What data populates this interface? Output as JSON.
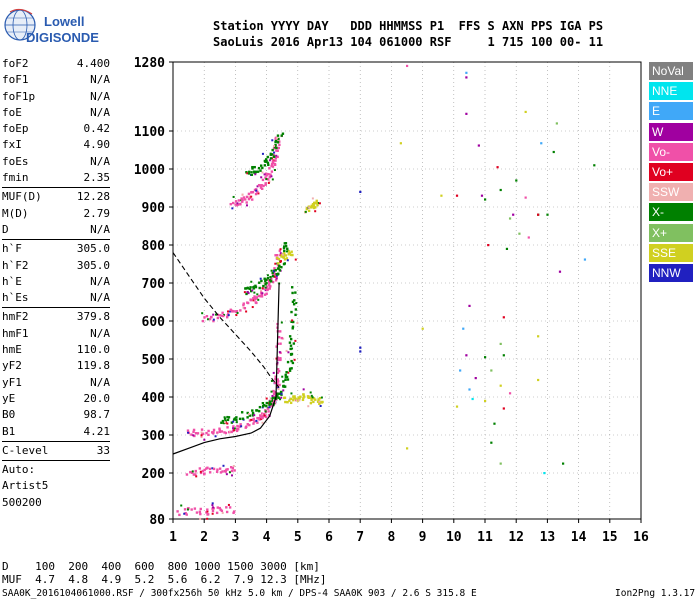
{
  "logo": {
    "line1": "Lowell",
    "line2": "DIGISONDE"
  },
  "header": {
    "labels": "Station YYYY DAY   DDD HHMMSS P1  FFS S AXN PPS IGA PS",
    "values": "SaoLuis 2016 Apr13 104 061000 RSF     1 715 100 00- 11"
  },
  "params": [
    {
      "name": "foF2",
      "value": "4.400"
    },
    {
      "name": "foF1",
      "value": "N/A"
    },
    {
      "name": "foF1p",
      "value": "N/A"
    },
    {
      "name": "foE",
      "value": "N/A"
    },
    {
      "name": "foEp",
      "value": "0.42"
    },
    {
      "name": "fxI",
      "value": "4.90"
    },
    {
      "name": "foEs",
      "value": "N/A"
    },
    {
      "name": "fmin",
      "value": "2.35"
    },
    {
      "name": "MUF(D)",
      "value": "12.28"
    },
    {
      "name": "M(D)",
      "value": "2.79"
    },
    {
      "name": "D",
      "value": "N/A"
    },
    {
      "name": "h`F",
      "value": "305.0"
    },
    {
      "name": "h`F2",
      "value": "305.0"
    },
    {
      "name": "h`E",
      "value": "N/A"
    },
    {
      "name": "h`Es",
      "value": "N/A"
    },
    {
      "name": "hmF2",
      "value": "379.8"
    },
    {
      "name": "hmF1",
      "value": "N/A"
    },
    {
      "name": "hmE",
      "value": "110.0"
    },
    {
      "name": "yF2",
      "value": "119.8"
    },
    {
      "name": "yF1",
      "value": "N/A"
    },
    {
      "name": "yE",
      "value": "20.0"
    },
    {
      "name": "B0",
      "value": "98.7"
    },
    {
      "name": "B1",
      "value": "4.21"
    },
    {
      "name": "C-level",
      "value": "33"
    },
    {
      "name": "Auto:",
      "value": ""
    },
    {
      "name": "Artist5",
      "value": ""
    },
    {
      "name": "500200",
      "value": ""
    }
  ],
  "legend": [
    {
      "label": "NoVal",
      "color": "#808080"
    },
    {
      "label": "NNE",
      "color": "#00e5ee"
    },
    {
      "label": "E",
      "color": "#40a8f8"
    },
    {
      "label": "W",
      "color": "#a000a0"
    },
    {
      "label": "Vo-",
      "color": "#f050a8"
    },
    {
      "label": "Vo+",
      "color": "#e00020"
    },
    {
      "label": "SSW",
      "color": "#f0b0b0"
    },
    {
      "label": "X-",
      "color": "#008000"
    },
    {
      "label": "X+",
      "color": "#80c060"
    },
    {
      "label": "SSE",
      "color": "#d0d020"
    },
    {
      "label": "NNW",
      "color": "#2020c0"
    }
  ],
  "footer": {
    "d_row": "D    100  200  400  600  800 1000 1500 3000 [km]",
    "muf_row": "MUF  4.7  4.8  4.9  5.2  5.6  6.2  7.9 12.3 [MHz]",
    "info": "SAA0K_2016104061000.RSF / 300fx256h 50 kHz 5.0 km / DPS-4 SAA0K 903 / 2.6 S 315.8 E",
    "version": "Ion2Png 1.3.17"
  },
  "chart_data": {
    "type": "scatter",
    "xlim": [
      1,
      16
    ],
    "ylim": [
      80,
      1280
    ],
    "x_ticks": [
      "1",
      "2",
      "3",
      "4",
      "5",
      "6",
      "7",
      "8",
      "9",
      "10",
      "11",
      "12",
      "13",
      "14",
      "15",
      "16"
    ],
    "y_ticks": [
      "80",
      "200",
      "300",
      "400",
      "500",
      "600",
      "700",
      "800",
      "900",
      "1000",
      "1100",
      "1280"
    ],
    "grid": true,
    "legend_position": "right",
    "profile_curve": {
      "x": [
        1.0,
        1.5,
        2.0,
        2.5,
        3.0,
        3.5,
        3.8,
        4.1,
        4.3,
        4.4
      ],
      "y": [
        250,
        265,
        280,
        290,
        296,
        305,
        318,
        350,
        400,
        700
      ]
    },
    "dashed_curve": {
      "x": [
        1.0,
        1.5,
        2.0,
        2.5,
        3.0,
        3.5,
        3.9,
        4.2,
        4.4
      ],
      "y": [
        780,
        720,
        660,
        610,
        565,
        520,
        480,
        445,
        425
      ]
    },
    "traces": [
      {
        "series": "Vo-",
        "points": [
          [
            1.5,
            305
          ],
          [
            2.0,
            307
          ],
          [
            2.5,
            310
          ],
          [
            3.0,
            318
          ],
          [
            3.5,
            330
          ],
          [
            3.8,
            345
          ],
          [
            4.0,
            360
          ],
          [
            4.2,
            385
          ],
          [
            4.3,
            410
          ],
          [
            4.35,
            450
          ],
          [
            4.4,
            520
          ],
          [
            4.42,
            600
          ]
        ]
      },
      {
        "series": "Vo-",
        "points": [
          [
            2.0,
            605
          ],
          [
            2.5,
            615
          ],
          [
            3.0,
            630
          ],
          [
            3.5,
            650
          ],
          [
            3.8,
            668
          ],
          [
            4.0,
            685
          ],
          [
            4.2,
            710
          ],
          [
            4.3,
            740
          ],
          [
            4.4,
            790
          ]
        ]
      },
      {
        "series": "Vo-",
        "points": [
          [
            2.9,
            905
          ],
          [
            3.2,
            915
          ],
          [
            3.5,
            930
          ],
          [
            3.8,
            950
          ],
          [
            4.0,
            975
          ],
          [
            4.2,
            1005
          ],
          [
            4.3,
            1040
          ],
          [
            4.4,
            1090
          ]
        ]
      },
      {
        "series": "X-",
        "points": [
          [
            2.5,
            330
          ],
          [
            3.0,
            345
          ],
          [
            3.5,
            360
          ],
          [
            4.0,
            380
          ],
          [
            4.3,
            400
          ],
          [
            4.5,
            420
          ],
          [
            4.7,
            460
          ],
          [
            4.8,
            520
          ],
          [
            4.85,
            600
          ],
          [
            4.9,
            700
          ]
        ]
      },
      {
        "series": "X-",
        "points": [
          [
            3.3,
            680
          ],
          [
            3.6,
            690
          ],
          [
            4.0,
            705
          ],
          [
            4.3,
            725
          ],
          [
            4.5,
            760
          ],
          [
            4.7,
            820
          ]
        ]
      },
      {
        "series": "X-",
        "points": [
          [
            3.4,
            990
          ],
          [
            3.7,
            1000
          ],
          [
            4.0,
            1020
          ],
          [
            4.3,
            1050
          ],
          [
            4.5,
            1100
          ]
        ]
      },
      {
        "series": "Vo-",
        "points": [
          [
            1.5,
            205
          ],
          [
            2.0,
            205
          ],
          [
            2.5,
            207
          ],
          [
            3.0,
            207
          ]
        ]
      },
      {
        "series": "Vo-",
        "points": [
          [
            1.2,
            100
          ],
          [
            1.8,
            100
          ],
          [
            2.4,
            102
          ],
          [
            3.0,
            102
          ]
        ]
      },
      {
        "series": "SSE",
        "points": [
          [
            4.6,
            390
          ],
          [
            4.9,
            395
          ],
          [
            5.2,
            400
          ],
          [
            5.5,
            392
          ],
          [
            5.8,
            385
          ]
        ]
      },
      {
        "series": "SSE",
        "points": [
          [
            5.3,
            890
          ],
          [
            5.5,
            900
          ],
          [
            5.6,
            915
          ]
        ]
      },
      {
        "series": "SSE",
        "points": [
          [
            4.4,
            760
          ],
          [
            4.6,
            770
          ],
          [
            4.8,
            785
          ]
        ]
      }
    ],
    "scatter": [
      {
        "series": "X-",
        "points": [
          [
            11.0,
            920
          ],
          [
            11.5,
            945
          ],
          [
            12.0,
            970
          ],
          [
            12.7,
            880
          ],
          [
            11.7,
            790
          ],
          [
            11.6,
            510
          ],
          [
            11.3,
            330
          ],
          [
            11.2,
            280
          ],
          [
            13.2,
            1045
          ],
          [
            11.0,
            505
          ]
        ]
      },
      {
        "series": "X+",
        "points": [
          [
            13.3,
            1120
          ],
          [
            11.8,
            870
          ],
          [
            12.1,
            830
          ],
          [
            11.5,
            540
          ],
          [
            11.2,
            470
          ],
          [
            11.5,
            225
          ]
        ]
      },
      {
        "series": "W",
        "points": [
          [
            10.4,
            1240
          ],
          [
            10.4,
            1145
          ],
          [
            10.8,
            1062
          ],
          [
            10.5,
            640
          ],
          [
            10.4,
            510
          ],
          [
            10.7,
            450
          ],
          [
            13.4,
            730
          ],
          [
            10.9,
            930
          ],
          [
            11.9,
            880
          ]
        ]
      },
      {
        "series": "Vo+",
        "points": [
          [
            11.1,
            800
          ],
          [
            11.4,
            1005
          ],
          [
            11.6,
            610
          ],
          [
            11.6,
            370
          ],
          [
            12.7,
            880
          ],
          [
            10.1,
            930
          ]
        ]
      },
      {
        "series": "E",
        "points": [
          [
            10.4,
            1252
          ],
          [
            10.3,
            580
          ],
          [
            10.2,
            470
          ],
          [
            12.8,
            1068
          ],
          [
            14.2,
            762
          ],
          [
            10.5,
            420
          ]
        ]
      },
      {
        "series": "NNW",
        "points": [
          [
            7.0,
            940
          ],
          [
            7.0,
            530
          ],
          [
            7.0,
            520
          ]
        ]
      },
      {
        "series": "SSE",
        "points": [
          [
            9.6,
            930
          ],
          [
            9.0,
            580
          ],
          [
            11.0,
            390
          ],
          [
            11.5,
            430
          ],
          [
            12.7,
            445
          ],
          [
            12.7,
            560
          ],
          [
            8.3,
            1068
          ],
          [
            12.3,
            1150
          ],
          [
            10.1,
            375
          ],
          [
            8.5,
            265
          ]
        ]
      },
      {
        "series": "Vo-",
        "points": [
          [
            8.5,
            1270
          ],
          [
            12.3,
            925
          ],
          [
            12.4,
            820
          ],
          [
            11.8,
            410
          ]
        ]
      },
      {
        "series": "NNE",
        "points": [
          [
            12.9,
            200
          ],
          [
            10.6,
            395
          ]
        ]
      },
      {
        "series": "X-",
        "points": [
          [
            13.5,
            225
          ],
          [
            14.5,
            1010
          ],
          [
            13.0,
            880
          ]
        ]
      }
    ]
  }
}
